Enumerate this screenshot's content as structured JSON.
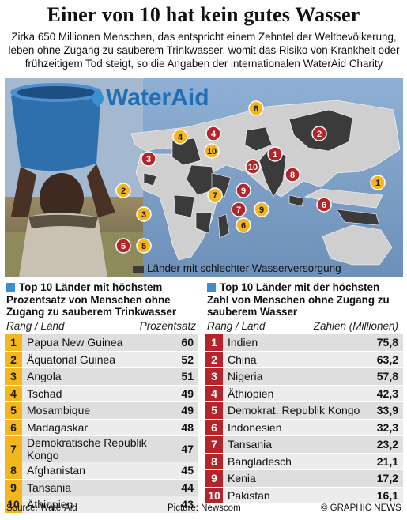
{
  "title": "Einer von 10 hat kein gutes Wasser",
  "intro": "Zirka 650 Millionen Menschen, das entspricht einem Zehntel der Weltbevölkerung, leben ohne Zugang zu sauberem Trinkwasser, womit das Risiko von Krankheit oder frühzeitigem Tod steigt, so die Angaben der internationalen WaterAid Charity",
  "logo_text": "WaterAid",
  "legend_label": "Länder mit schlechter Wasserversorgung",
  "left_panel": {
    "heading": "Top 10 Länder mit höchstem Prozentsatz von Menschen ohne Zugang zu sauberem Trinkwasser",
    "col_rank": "Rang / Land",
    "col_value": "Prozentsatz",
    "rows": [
      {
        "rank": "1",
        "country": "Papua New Guinea",
        "value": "60"
      },
      {
        "rank": "2",
        "country": "Äquatorial Guinea",
        "value": "52"
      },
      {
        "rank": "3",
        "country": "Angola",
        "value": "51"
      },
      {
        "rank": "4",
        "country": "Tschad",
        "value": "49"
      },
      {
        "rank": "5",
        "country": "Mosambique",
        "value": "49"
      },
      {
        "rank": "6",
        "country": "Madagaskar",
        "value": "48"
      },
      {
        "rank": "7",
        "country": "Demokratische Republik Kongo",
        "value": "47"
      },
      {
        "rank": "8",
        "country": "Afghanistan",
        "value": "45"
      },
      {
        "rank": "9",
        "country": "Tansania",
        "value": "44"
      },
      {
        "rank": "10",
        "country": "Äthiopien",
        "value": "43"
      }
    ]
  },
  "right_panel": {
    "heading": "Top 10 Länder mit der höchsten Zahl von Menschen ohne Zugang zu sauberem Wasser",
    "col_rank": "Rang / Land",
    "col_value": "Zahlen (Millionen)",
    "rows": [
      {
        "rank": "1",
        "country": "Indien",
        "value": "75,8"
      },
      {
        "rank": "2",
        "country": "China",
        "value": "63,2"
      },
      {
        "rank": "3",
        "country": "Nigeria",
        "value": "57,8"
      },
      {
        "rank": "4",
        "country": "Äthiopien",
        "value": "42,3"
      },
      {
        "rank": "5",
        "country": "Demokrat. Republik Kongo",
        "value": "33,9"
      },
      {
        "rank": "6",
        "country": "Indonesien",
        "value": "32,3"
      },
      {
        "rank": "7",
        "country": "Tansania",
        "value": "23,2"
      },
      {
        "rank": "8",
        "country": "Bangladesch",
        "value": "21,1"
      },
      {
        "rank": "9",
        "country": "Kenia",
        "value": "17,2"
      },
      {
        "rank": "10",
        "country": "Pakistan",
        "value": "16,1"
      }
    ]
  },
  "map_markers": {
    "yellow": [
      "1",
      "2",
      "3",
      "4",
      "5",
      "6",
      "7",
      "8",
      "9",
      "10"
    ],
    "red": [
      "1",
      "2",
      "3",
      "4",
      "5",
      "6",
      "7",
      "8",
      "9",
      "10"
    ]
  },
  "footer": {
    "source": "Source: WaterAid",
    "picture": "Picture: Newscom",
    "credit": "© GRAPHIC NEWS"
  },
  "colors": {
    "yellow_badge": "#f3b61f",
    "red_badge": "#b3242b",
    "blue_accent": "#3a8fd0",
    "land_dark": "#3b3b3b",
    "land_light": "#cfcfcf"
  }
}
